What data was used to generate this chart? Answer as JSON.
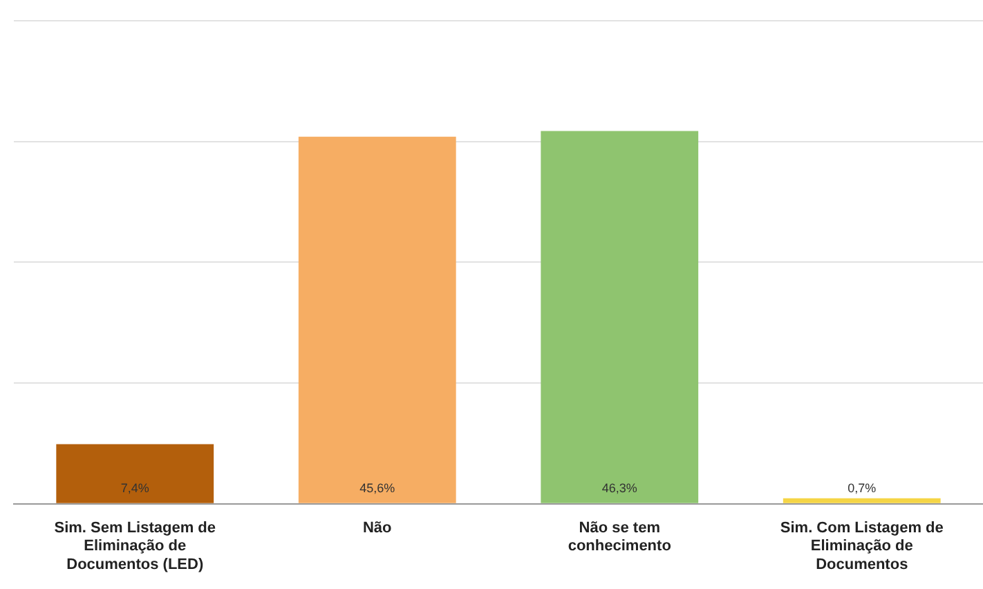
{
  "chart_data": {
    "type": "bar",
    "categories": [
      "Sim. Sem Listagem de Eliminação de Documentos (LED)",
      "Não",
      "Não se tem conhecimento",
      "Sim. Com Listagem de Eliminação de Documentos"
    ],
    "values": [
      7.4,
      45.6,
      46.3,
      0.7
    ],
    "colors": [
      "#b35f0c",
      "#f6ad63",
      "#8fc46f",
      "#f5d546"
    ],
    "value_labels": [
      "7,4%",
      "45,6%",
      "46,3%",
      "0,7%"
    ],
    "ylim": [
      0,
      60
    ],
    "yticks": [
      {
        "value": 0,
        "label": null
      },
      {
        "value": 15,
        "label": null
      },
      {
        "value": 30,
        "label": null
      },
      {
        "value": 45,
        "label": null
      },
      {
        "value": 60,
        "label": null
      }
    ],
    "grid": "y"
  }
}
